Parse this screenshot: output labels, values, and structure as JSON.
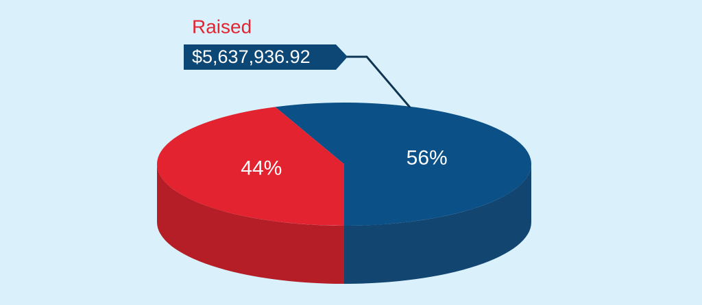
{
  "chart_data": {
    "type": "pie",
    "values": [
      56,
      44
    ],
    "value_labels": [
      "56%",
      "44%"
    ],
    "colors": [
      "#0b5087",
      "#e3232f"
    ],
    "side_colors": [
      "#134571",
      "#b51e27"
    ],
    "annotation": {
      "title": "Raised",
      "text": "$5,637,936.92"
    }
  }
}
